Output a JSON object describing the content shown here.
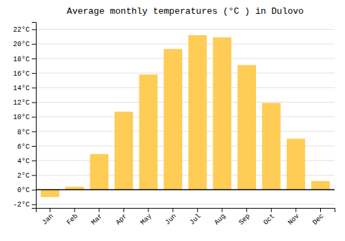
{
  "chart_data": {
    "type": "bar",
    "title": "Average monthly temperatures (°C ) in Dulovo",
    "categories": [
      "Jan",
      "Feb",
      "Mar",
      "Apr",
      "May",
      "Jun",
      "Jul",
      "Aug",
      "Sep",
      "Oct",
      "Nov",
      "Dec"
    ],
    "values": [
      -1.0,
      0.4,
      4.9,
      10.7,
      15.8,
      19.3,
      21.2,
      20.9,
      17.1,
      11.9,
      7.0,
      1.2
    ],
    "color": "#FFCC55",
    "ylim": [
      -2.5,
      23.0
    ],
    "yticks": [
      {
        "value": -2,
        "label": "-2°C"
      },
      {
        "value": 0,
        "label": "0°C"
      },
      {
        "value": 2,
        "label": "2°C"
      },
      {
        "value": 4,
        "label": "4°C"
      },
      {
        "value": 6,
        "label": "6°C"
      },
      {
        "value": 8,
        "label": "8°C"
      },
      {
        "value": 10,
        "label": "10°C"
      },
      {
        "value": 12,
        "label": "12°C"
      },
      {
        "value": 14,
        "label": "14°C"
      },
      {
        "value": 16,
        "label": "16°C"
      },
      {
        "value": 18,
        "label": "18°C"
      },
      {
        "value": 20,
        "label": "20°C"
      },
      {
        "value": 22,
        "label": "22°C"
      }
    ],
    "grid": true
  }
}
